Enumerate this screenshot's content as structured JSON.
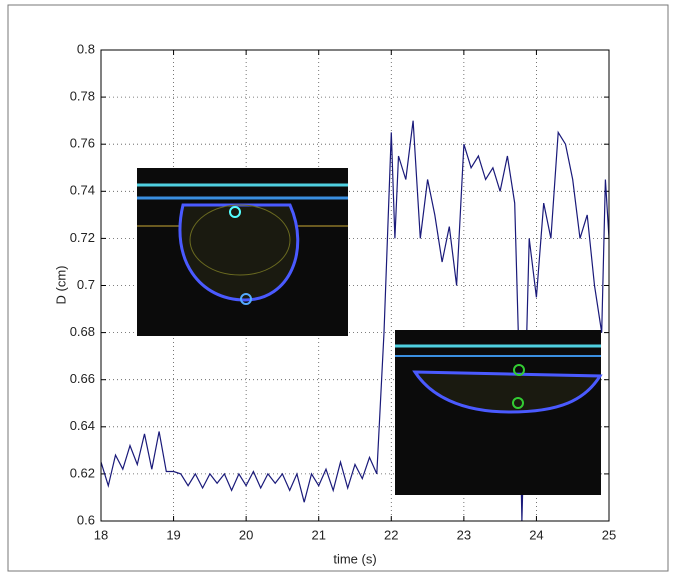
{
  "chart_data": {
    "type": "line",
    "xlabel": "time (s)",
    "ylabel": "D (cm)",
    "x": [
      18.0,
      18.1,
      18.2,
      18.3,
      18.4,
      18.5,
      18.6,
      18.7,
      18.8,
      18.9,
      19.0,
      19.1,
      19.2,
      19.3,
      19.4,
      19.5,
      19.6,
      19.7,
      19.8,
      19.9,
      20.0,
      20.1,
      20.2,
      20.3,
      20.4,
      20.5,
      20.6,
      20.7,
      20.8,
      20.9,
      21.0,
      21.1,
      21.2,
      21.3,
      21.4,
      21.5,
      21.6,
      21.7,
      21.8,
      21.9,
      22.0,
      22.05,
      22.1,
      22.2,
      22.3,
      22.4,
      22.5,
      22.6,
      22.7,
      22.8,
      22.9,
      23.0,
      23.1,
      23.2,
      23.3,
      23.4,
      23.5,
      23.6,
      23.7,
      23.75,
      23.8,
      23.9,
      24.0,
      24.1,
      24.2,
      24.3,
      24.4,
      24.5,
      24.6,
      24.7,
      24.8,
      24.9,
      24.95,
      25.0
    ],
    "values": [
      0.625,
      0.615,
      0.628,
      0.622,
      0.632,
      0.624,
      0.637,
      0.622,
      0.638,
      0.621,
      0.621,
      0.62,
      0.615,
      0.62,
      0.614,
      0.62,
      0.616,
      0.62,
      0.613,
      0.62,
      0.615,
      0.621,
      0.614,
      0.62,
      0.616,
      0.62,
      0.613,
      0.62,
      0.608,
      0.62,
      0.615,
      0.622,
      0.613,
      0.625,
      0.614,
      0.624,
      0.618,
      0.627,
      0.62,
      0.68,
      0.765,
      0.72,
      0.755,
      0.745,
      0.77,
      0.72,
      0.745,
      0.73,
      0.71,
      0.725,
      0.7,
      0.76,
      0.75,
      0.755,
      0.745,
      0.75,
      0.74,
      0.755,
      0.735,
      0.68,
      0.6,
      0.72,
      0.695,
      0.735,
      0.72,
      0.765,
      0.76,
      0.745,
      0.72,
      0.73,
      0.7,
      0.68,
      0.745,
      0.72
    ],
    "color": "#1a1a7a",
    "xlim": [
      18,
      25
    ],
    "xticks": [
      18,
      19,
      20,
      21,
      22,
      23,
      24,
      25
    ],
    "ylim": [
      0.6,
      0.8
    ],
    "yticks": [
      0.6,
      0.62,
      0.64,
      0.66,
      0.68,
      0.7,
      0.72,
      0.74,
      0.76,
      0.78,
      0.8
    ],
    "grid": true
  }
}
